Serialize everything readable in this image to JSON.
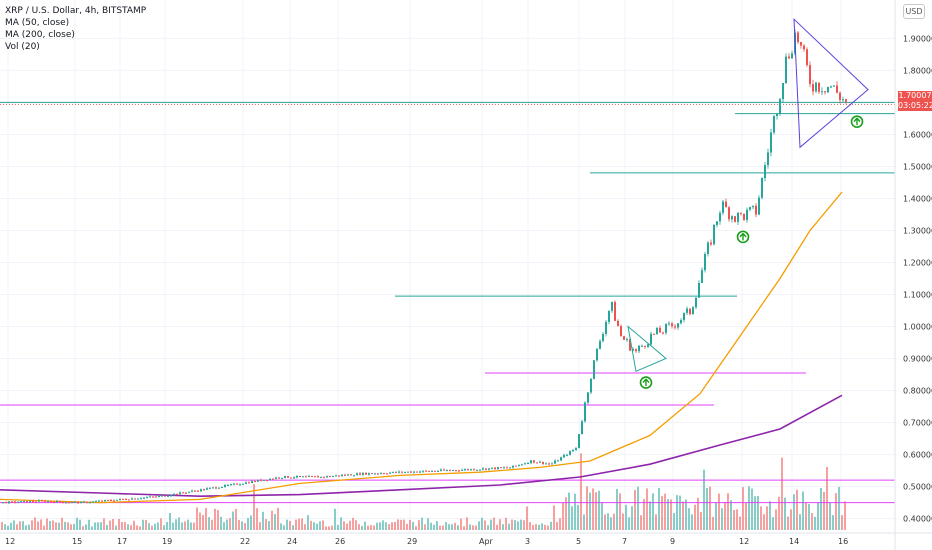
{
  "legend": {
    "title": "XRP / U.S. Dollar, 4h, BITSTAMP",
    "ma50": "MA (50, close)",
    "ma200": "MA (200, close)",
    "vol": "Vol (20)"
  },
  "price_badge": "USD",
  "last_price": {
    "price": "1.70007",
    "countdown": "03:05:22"
  },
  "colors": {
    "up": "#26a69a",
    "down": "#ef5350",
    "ma50": "#f59d00",
    "ma200": "#8e24aa",
    "support": "#26a69a",
    "pink": "#e040fb",
    "triangle": "#5c40d8"
  },
  "chart_data": {
    "type": "candlestick",
    "symbol": "XRP / U.S. Dollar",
    "interval": "4h",
    "exchange": "BITSTAMP",
    "y_axis": {
      "min": 0.38,
      "max": 1.97,
      "ticks": [
        "0.40000",
        "0.50000",
        "0.60000",
        "0.70000",
        "0.80000",
        "0.90000",
        "1.00000",
        "1.10000",
        "1.20000",
        "1.30000",
        "1.40000",
        "1.50000",
        "1.60000",
        "1.70000",
        "1.80000",
        "1.90000"
      ]
    },
    "x_axis": {
      "ticks": [
        "12",
        "15",
        "17",
        "19",
        "22",
        "24",
        "26",
        "29",
        "Apr",
        "3",
        "5",
        "7",
        "9",
        "12",
        "14",
        "16"
      ]
    },
    "price_path": [
      [
        0,
        0.45
      ],
      [
        40,
        0.455
      ],
      [
        80,
        0.45
      ],
      [
        120,
        0.46
      ],
      [
        160,
        0.47
      ],
      [
        200,
        0.49
      ],
      [
        240,
        0.51
      ],
      [
        280,
        0.53
      ],
      [
        320,
        0.53
      ],
      [
        360,
        0.54
      ],
      [
        400,
        0.545
      ],
      [
        440,
        0.55
      ],
      [
        480,
        0.555
      ],
      [
        510,
        0.56
      ],
      [
        530,
        0.58
      ],
      [
        550,
        0.57
      ],
      [
        575,
        0.62
      ],
      [
        590,
        0.85
      ],
      [
        600,
        0.97
      ],
      [
        610,
        1.07
      ],
      [
        620,
        0.97
      ],
      [
        635,
        0.92
      ],
      [
        650,
        0.97
      ],
      [
        670,
        1.0
      ],
      [
        690,
        1.05
      ],
      [
        705,
        1.22
      ],
      [
        720,
        1.38
      ],
      [
        735,
        1.34
      ],
      [
        755,
        1.36
      ],
      [
        770,
        1.6
      ],
      [
        785,
        1.83
      ],
      [
        795,
        1.92
      ],
      [
        810,
        1.76
      ],
      [
        830,
        1.75
      ],
      [
        845,
        1.7
      ]
    ],
    "ma50_path": [
      [
        0,
        0.46
      ],
      [
        100,
        0.45
      ],
      [
        200,
        0.46
      ],
      [
        300,
        0.51
      ],
      [
        400,
        0.535
      ],
      [
        480,
        0.545
      ],
      [
        540,
        0.56
      ],
      [
        590,
        0.58
      ],
      [
        650,
        0.66
      ],
      [
        700,
        0.79
      ],
      [
        740,
        0.97
      ],
      [
        780,
        1.15
      ],
      [
        810,
        1.3
      ],
      [
        842,
        1.42
      ]
    ],
    "ma200_path": [
      [
        0,
        0.49
      ],
      [
        100,
        0.48
      ],
      [
        200,
        0.47
      ],
      [
        300,
        0.475
      ],
      [
        400,
        0.49
      ],
      [
        500,
        0.505
      ],
      [
        580,
        0.53
      ],
      [
        650,
        0.57
      ],
      [
        720,
        0.63
      ],
      [
        780,
        0.68
      ],
      [
        842,
        0.785
      ]
    ],
    "levels": [
      {
        "price": 1.7,
        "x1": 0,
        "x2": 895,
        "color": "support"
      },
      {
        "price": 1.665,
        "x1": 735,
        "x2": 895,
        "color": "support"
      },
      {
        "price": 1.48,
        "x1": 590,
        "x2": 895,
        "color": "support"
      },
      {
        "price": 1.095,
        "x1": 395,
        "x2": 737,
        "color": "support"
      },
      {
        "price": 0.855,
        "x1": 485,
        "x2": 806,
        "color": "pink"
      },
      {
        "price": 0.755,
        "x1": 0,
        "x2": 714,
        "color": "pink"
      },
      {
        "price": 0.52,
        "x1": 0,
        "x2": 895,
        "color": "pink"
      },
      {
        "price": 0.45,
        "x1": 0,
        "x2": 895,
        "color": "pink"
      }
    ],
    "triangles": [
      {
        "points": [
          [
            794,
            1.96
          ],
          [
            868,
            1.74
          ],
          [
            800,
            1.56
          ]
        ],
        "color": "triangle"
      },
      {
        "points": [
          [
            628,
            1.0
          ],
          [
            666,
            0.9
          ],
          [
            636,
            0.86
          ]
        ],
        "color": "support"
      }
    ],
    "up_markers": [
      [
        646,
        0.825
      ],
      [
        743,
        1.28
      ],
      [
        857,
        1.64
      ]
    ]
  }
}
